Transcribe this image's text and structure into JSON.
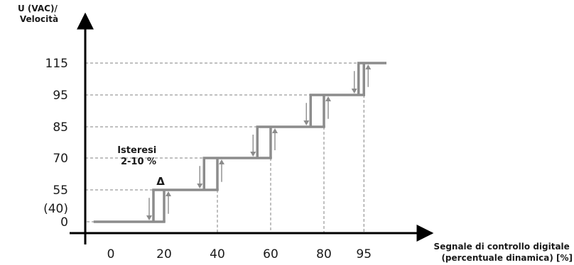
{
  "chart_data": {
    "type": "line",
    "ylabel": [
      "U (VAC)/",
      "Velocità"
    ],
    "xlabel": [
      "Segnale di controllo digitale",
      "(percentuale dinamica) [%]"
    ],
    "x_ticks": [
      "0",
      "20",
      "40",
      "60",
      "80",
      "95"
    ],
    "y_ticks": [
      {
        "value": 0,
        "label": "0"
      },
      {
        "value": 40,
        "label": "(40)"
      },
      {
        "value": 55,
        "label": "55"
      },
      {
        "value": 70,
        "label": "70"
      },
      {
        "value": 85,
        "label": "85"
      },
      {
        "value": 95,
        "label": "95"
      },
      {
        "value": 115,
        "label": "115"
      }
    ],
    "steps": [
      {
        "level": 0,
        "x_start": -6,
        "x_up": 20
      },
      {
        "level": 55,
        "x_down": 16,
        "x_up": 40
      },
      {
        "level": 70,
        "x_down": 35,
        "x_up": 60
      },
      {
        "level": 85,
        "x_down": 55,
        "x_up": 80
      },
      {
        "level": 95,
        "x_down": 75,
        "x_up": 95
      },
      {
        "level": 115,
        "x_down": 93,
        "x_end": 103
      }
    ],
    "annotation": {
      "lines": [
        "Isteresi",
        "2-10 %"
      ],
      "delta_symbol": "Δ",
      "delta_at_level": 55
    },
    "colors": {
      "curve": "#8c8c8c",
      "arrows": "#8c8c8c",
      "grid": "#808080",
      "axis": "#000000"
    }
  }
}
